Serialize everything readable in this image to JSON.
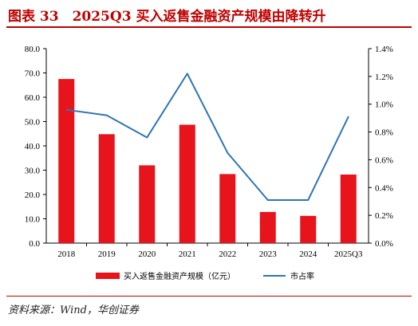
{
  "header": {
    "title": "图表 33　2025Q3 买入返售金融资产规模由降转升"
  },
  "footer": {
    "source": "资料来源：Wind，华创证券"
  },
  "chart_data": {
    "type": "bar",
    "categories": [
      "2018",
      "2019",
      "2020",
      "2021",
      "2022",
      "2023",
      "2024",
      "2025Q3"
    ],
    "series": [
      {
        "name": "买入返售金融资产规模（亿元）",
        "type": "bar",
        "axis": "left",
        "values": [
          67.5,
          44.8,
          32.0,
          48.7,
          28.4,
          12.8,
          11.2,
          28.2
        ],
        "color": "#e8141c"
      },
      {
        "name": "市占率",
        "type": "line",
        "axis": "right",
        "values": [
          0.96,
          0.92,
          0.76,
          1.22,
          0.65,
          0.31,
          0.31,
          0.91
        ],
        "color": "#2e75b6"
      }
    ],
    "y_left": {
      "min": 0,
      "max": 80,
      "step": 10,
      "tick_labels": [
        "0.0",
        "10.0",
        "20.0",
        "30.0",
        "40.0",
        "50.0",
        "60.0",
        "70.0",
        "80.0"
      ]
    },
    "y_right": {
      "min": 0,
      "max": 1.4,
      "step": 0.2,
      "tick_labels": [
        "0.0%",
        "0.2%",
        "0.4%",
        "0.6%",
        "0.8%",
        "1.0%",
        "1.2%",
        "1.4%"
      ]
    },
    "grid": false,
    "legend_position": "bottom"
  }
}
